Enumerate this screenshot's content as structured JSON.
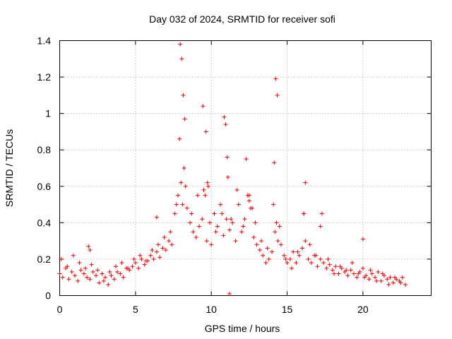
{
  "chart_data": {
    "type": "scatter",
    "title": "Day 032 of 2024, SRMTID for receiver sofi",
    "xlabel": "GPS time / hours",
    "ylabel": "SRMTID / TECUs",
    "xlim": [
      0,
      24.5
    ],
    "ylim": [
      0,
      1.4
    ],
    "xticks": [
      0,
      5,
      10,
      15,
      20
    ],
    "xtick_labels": [
      "0",
      "5",
      "10",
      "15",
      "20"
    ],
    "yticks": [
      0,
      0.2,
      0.4,
      0.6,
      0.8,
      1.0,
      1.2,
      1.4
    ],
    "ytick_labels": [
      "0",
      "0.2",
      "0.4",
      "0.6",
      "0.8",
      "1",
      "1.2",
      "1.4"
    ],
    "grid": true,
    "marker": "plus",
    "color": "#ee0000",
    "series": [
      {
        "name": "SRMTID",
        "x": [
          0.0,
          0.2,
          0.4,
          0.6,
          0.8,
          1.0,
          1.2,
          1.4,
          1.6,
          1.8,
          2.0,
          2.2,
          2.4,
          2.6,
          2.8,
          3.0,
          3.2,
          3.4,
          3.6,
          3.8,
          4.0,
          4.2,
          4.4,
          4.6,
          4.8,
          5.0,
          5.2,
          5.4,
          5.6,
          5.8,
          6.0,
          6.2,
          6.4,
          6.6,
          6.8,
          7.0,
          7.2,
          7.4,
          7.6,
          7.8,
          8.0,
          8.1,
          8.2,
          8.4,
          8.6,
          8.8,
          9.0,
          9.2,
          9.4,
          9.6,
          9.7,
          9.8,
          10.0,
          10.2,
          10.4,
          10.6,
          10.8,
          11.0,
          11.1,
          11.2,
          11.4,
          11.6,
          11.8,
          12.0,
          12.2,
          12.4,
          12.6,
          12.8,
          13.0,
          13.2,
          13.4,
          13.6,
          13.8,
          14.0,
          14.2,
          14.3,
          14.4,
          14.6,
          14.8,
          15.0,
          15.2,
          15.4,
          15.6,
          15.8,
          16.0,
          16.2,
          16.4,
          16.6,
          16.8,
          17.0,
          17.2,
          17.4,
          17.6,
          17.8,
          18.0,
          18.2,
          18.4,
          18.6,
          18.8,
          19.0,
          19.2,
          19.4,
          19.6,
          19.8,
          20.0,
          20.2,
          20.4,
          20.6,
          20.8,
          21.0,
          21.2,
          21.4,
          21.6,
          21.8,
          22.0,
          22.2,
          22.4,
          22.6,
          22.8,
          0.1,
          0.5,
          0.9,
          1.3,
          1.7,
          2.1,
          2.5,
          2.9,
          3.3,
          3.7,
          4.1,
          4.5,
          4.9,
          5.3,
          5.7,
          6.1,
          6.5,
          6.9,
          7.3,
          7.7,
          7.9,
          8.3,
          8.7,
          9.1,
          9.5,
          9.9,
          10.3,
          10.7,
          11.3,
          11.7,
          12.1,
          12.5,
          12.9,
          13.3,
          13.7,
          14.1,
          14.5,
          14.9,
          15.3,
          15.7,
          16.1,
          16.5,
          16.9,
          17.3,
          17.7,
          18.1,
          18.5,
          18.9,
          19.3,
          19.7,
          20.1,
          20.5,
          20.9,
          21.3,
          21.7,
          22.1,
          22.5,
          7.95,
          8.05,
          8.15,
          8.25,
          9.45,
          9.65,
          9.75,
          10.85,
          10.95,
          11.05,
          14.25,
          14.35,
          14.15,
          16.1,
          16.2,
          12.3,
          12.5,
          12.7,
          17.2,
          20.0,
          1.9,
          2.0,
          6.4,
          11.2
        ],
        "y": [
          0.12,
          0.1,
          0.15,
          0.09,
          0.13,
          0.11,
          0.08,
          0.14,
          0.12,
          0.1,
          0.09,
          0.13,
          0.11,
          0.07,
          0.12,
          0.1,
          0.06,
          0.11,
          0.09,
          0.13,
          0.12,
          0.1,
          0.15,
          0.14,
          0.16,
          0.18,
          0.15,
          0.2,
          0.17,
          0.19,
          0.22,
          0.2,
          0.24,
          0.21,
          0.26,
          0.25,
          0.3,
          0.28,
          0.45,
          0.55,
          0.62,
          0.5,
          0.7,
          0.48,
          0.4,
          0.35,
          0.32,
          0.38,
          0.42,
          0.55,
          0.3,
          0.6,
          0.28,
          0.45,
          0.38,
          0.5,
          0.33,
          0.42,
          0.65,
          0.36,
          0.4,
          0.3,
          0.5,
          0.35,
          0.42,
          0.55,
          0.48,
          0.32,
          0.28,
          0.25,
          0.22,
          0.18,
          0.2,
          0.24,
          0.35,
          0.4,
          0.3,
          0.28,
          0.22,
          0.18,
          0.2,
          0.24,
          0.18,
          0.22,
          0.26,
          0.3,
          0.2,
          0.18,
          0.22,
          0.16,
          0.2,
          0.18,
          0.15,
          0.17,
          0.14,
          0.16,
          0.12,
          0.15,
          0.13,
          0.11,
          0.14,
          0.12,
          0.1,
          0.13,
          0.15,
          0.11,
          0.09,
          0.12,
          0.1,
          0.13,
          0.08,
          0.11,
          0.09,
          0.1,
          0.07,
          0.09,
          0.08,
          0.1,
          0.06,
          0.2,
          0.16,
          0.22,
          0.18,
          0.15,
          0.17,
          0.14,
          0.08,
          0.13,
          0.16,
          0.18,
          0.15,
          0.2,
          0.22,
          0.19,
          0.25,
          0.28,
          0.32,
          0.35,
          0.5,
          0.86,
          0.6,
          0.45,
          0.55,
          0.58,
          0.4,
          0.35,
          0.45,
          0.42,
          0.58,
          0.38,
          0.52,
          0.4,
          0.3,
          0.26,
          0.5,
          0.38,
          0.2,
          0.15,
          0.24,
          0.45,
          0.28,
          0.22,
          0.45,
          0.2,
          0.12,
          0.16,
          0.14,
          0.18,
          0.12,
          0.1,
          0.14,
          0.08,
          0.12,
          0.06,
          0.1,
          0.07,
          1.38,
          1.3,
          1.1,
          0.97,
          1.04,
          0.9,
          0.62,
          0.98,
          0.94,
          0.76,
          1.19,
          1.1,
          0.73,
          0.45,
          0.62,
          0.75,
          0.55,
          0.48,
          0.38,
          0.31,
          0.27,
          0.25,
          0.43,
          0.01
        ]
      }
    ]
  }
}
